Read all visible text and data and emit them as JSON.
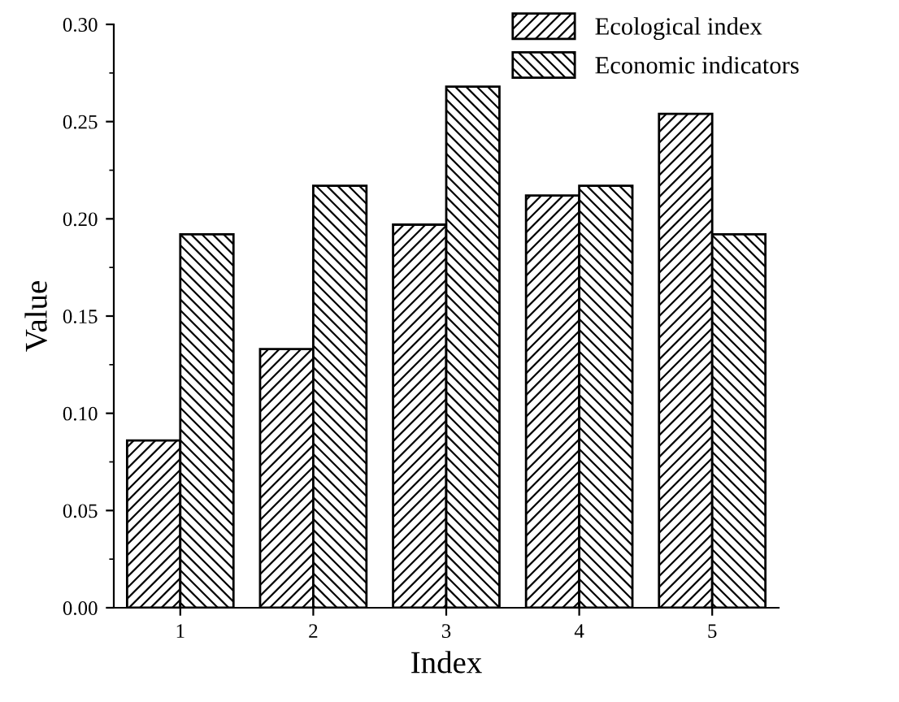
{
  "chart_data": {
    "type": "bar",
    "xlabel": "Index",
    "ylabel": "Value",
    "categories": [
      "1",
      "2",
      "3",
      "4",
      "5"
    ],
    "series": [
      {
        "name": "Ecological index",
        "color": "#000000",
        "values": [
          0.086,
          0.133,
          0.197,
          0.212,
          0.254
        ]
      },
      {
        "name": "Economic indicators",
        "color": "#000000",
        "values": [
          0.192,
          0.217,
          0.268,
          0.217,
          0.192
        ]
      }
    ],
    "ylim": [
      0,
      0.3
    ],
    "yticks": [
      {
        "value": 0,
        "label": "0.00"
      },
      {
        "value": 0.05,
        "label": "0.05"
      },
      {
        "value": 0.1,
        "label": "0.10"
      },
      {
        "value": 0.15,
        "label": "0.15"
      },
      {
        "value": 0.2,
        "label": "0.20"
      },
      {
        "value": 0.25,
        "label": "0.25"
      },
      {
        "value": 0.3,
        "label": "0.30"
      }
    ],
    "legend": "top right",
    "grid": false
  }
}
